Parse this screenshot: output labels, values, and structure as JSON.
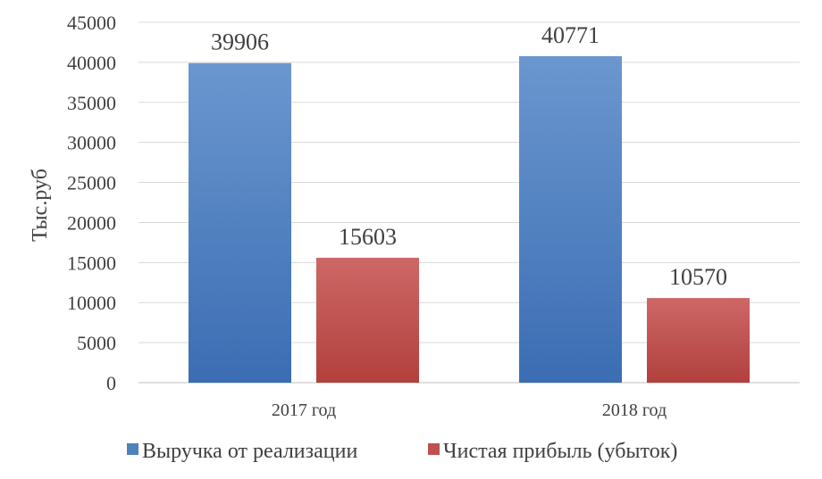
{
  "chart_data": {
    "type": "bar",
    "categories": [
      "2017 год",
      "2018 год"
    ],
    "series": [
      {
        "name": "Выручка от реализации",
        "values": [
          39906,
          40771
        ],
        "color": "#4f81bd"
      },
      {
        "name": "Чистая прибыль (убыток)",
        "values": [
          15603,
          10570
        ],
        "color": "#c0504d"
      }
    ],
    "ylabel": "Тыс.руб",
    "ylim": [
      0,
      45000
    ],
    "yticks": [
      0,
      5000,
      10000,
      15000,
      20000,
      25000,
      30000,
      35000,
      40000,
      45000
    ],
    "grid": true,
    "legend_position": "bottom"
  }
}
